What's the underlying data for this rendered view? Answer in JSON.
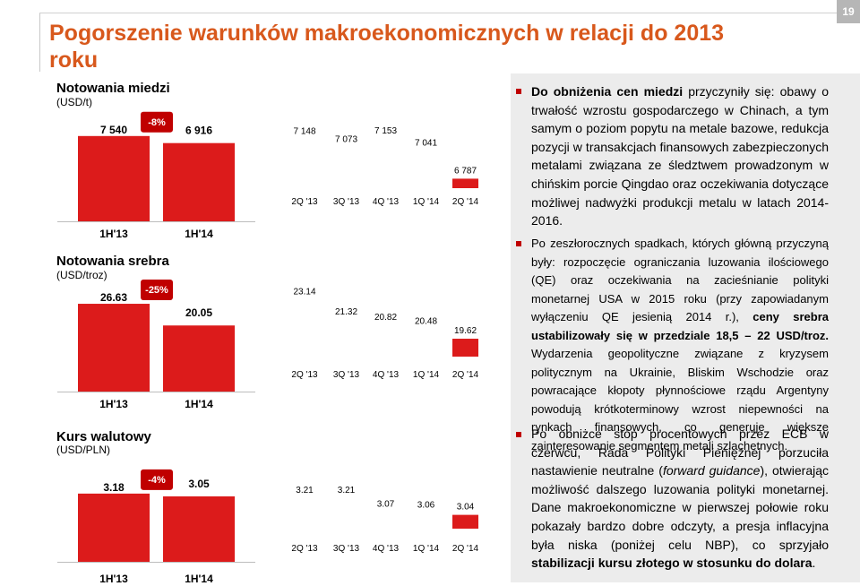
{
  "page_number": "19",
  "title": "Pogorszenie warunków makroekonomicznych w relacji do 2013 roku",
  "colors": {
    "accent": "#d8581c",
    "bar": "#dc1b1b",
    "badge": "#c00000",
    "panel": "#ececec"
  },
  "chart_data": [
    {
      "type": "bar",
      "title": "Notowania miedzi",
      "unit": "(USD/t)",
      "categories": [
        "1H'13",
        "1H'14"
      ],
      "values": [
        7540,
        6916
      ],
      "value_labels": [
        "7 540",
        "6 916"
      ],
      "change_label": "-8%",
      "ylim": [
        0,
        8000
      ]
    },
    {
      "type": "bar",
      "categories": [
        "2Q '13",
        "3Q '13",
        "4Q '13",
        "1Q '14",
        "2Q '14"
      ],
      "values": [
        7148,
        7073,
        7153,
        7041,
        6787
      ],
      "value_labels": [
        "7 148",
        "7 073",
        "7 153",
        "7 041",
        "6 787"
      ],
      "highlight_index": 4,
      "ylim": [
        6700,
        7300
      ]
    },
    {
      "type": "bar",
      "title": "Notowania srebra",
      "unit": "(USD/troz)",
      "categories": [
        "1H'13",
        "1H'14"
      ],
      "values": [
        26.63,
        20.05
      ],
      "value_labels": [
        "26.63",
        "20.05"
      ],
      "change_label": "-25%",
      "ylim": [
        0,
        28
      ]
    },
    {
      "type": "bar",
      "categories": [
        "2Q '13",
        "3Q '13",
        "4Q '13",
        "1Q '14",
        "2Q '14"
      ],
      "values": [
        23.14,
        21.32,
        20.82,
        20.48,
        19.62
      ],
      "value_labels": [
        "23.14",
        "21.32",
        "20.82",
        "20.48",
        "19.62"
      ],
      "highlight_index": 4,
      "ylim": [
        18,
        24
      ]
    },
    {
      "type": "bar",
      "title": "Kurs walutowy",
      "unit": "(USD/PLN)",
      "categories": [
        "1H'13",
        "1H'14"
      ],
      "values": [
        3.18,
        3.05
      ],
      "value_labels": [
        "3.18",
        "3.05"
      ],
      "change_label": "-4%",
      "ylim": [
        0,
        3.3
      ]
    },
    {
      "type": "bar",
      "categories": [
        "2Q '13",
        "3Q '13",
        "4Q '13",
        "1Q '14",
        "2Q '14"
      ],
      "values": [
        3.21,
        3.21,
        3.07,
        3.06,
        3.04
      ],
      "value_labels": [
        "3.21",
        "3.21",
        "3.07",
        "3.06",
        "3.04"
      ],
      "highlight_index": 4,
      "ylim": [
        2.9,
        3.3
      ]
    }
  ],
  "bullets": [
    {
      "segments": [
        {
          "b": true,
          "t": "Do obniżenia cen miedzi"
        },
        {
          "t": " przyczyniły się: obawy o trwałość wzrostu gospodarczego w Chinach, a tym samym o poziom popytu na metale bazowe, redukcja pozycji w transakcjach finansowych zabezpieczonych metalami związana ze śledztwem prowadzonym w chińskim porcie Qingdao oraz oczekiwania dotyczące możliwej nadwyżki produkcji metalu w latach 2014-2016."
        }
      ]
    },
    {
      "segments": [
        {
          "t": "Po zeszłorocznych spadkach, których główną przyczyną były: rozpoczęcie ograniczania luzowania ilościowego (QE) oraz oczekiwania na zacieśnianie polityki monetarnej USA w 2015 roku (przy zapowiadanym wyłączeniu QE jesienią 2014 r.), "
        },
        {
          "b": true,
          "t": "ceny srebra ustabilizowały się w przedziale 18,5 – 22 USD/troz."
        },
        {
          "t": " Wydarzenia geopolityczne związane z kryzysem politycznym na Ukrainie, Bliskim Wschodzie oraz powracające kłopoty płynnościowe rządu Argentyny powodują krótkoterminowy wzrost niepewności na rynkach finansowych, co generuje większe zainteresowanie segmentem metali szlachetnych."
        }
      ]
    },
    {
      "segments": [
        {
          "t": "Po obniżce stóp procentowych przez ECB w czerwcu, Rada Polityki Pieniężnej porzuciła nastawienie neutralne ("
        },
        {
          "i": true,
          "t": "forward guidance"
        },
        {
          "t": "), otwierając możliwość dalszego luzowania polityki monetarnej. Dane makroekonomiczne w pierwszej połowie roku pokazały bardzo dobre odczyty, a presja inflacyjna była niska (poniżej celu NBP), co sprzyjało "
        },
        {
          "b": true,
          "t": "stabilizacji kursu złotego w stosunku do dolara"
        },
        {
          "t": "."
        }
      ]
    }
  ]
}
